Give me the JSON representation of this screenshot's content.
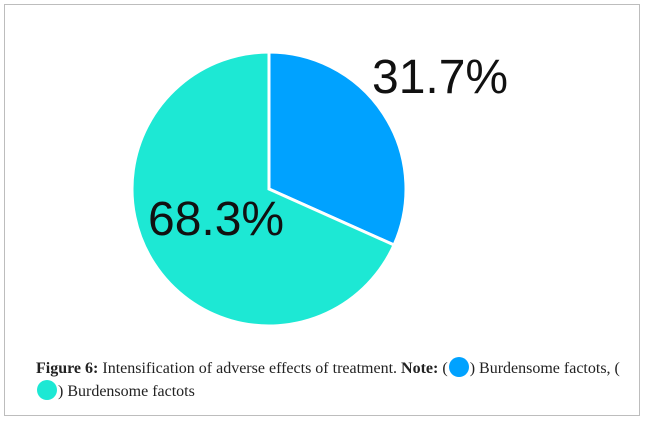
{
  "chart_data": {
    "type": "pie",
    "slices": [
      {
        "label": "31.7%",
        "value": 31.7,
        "color": "#00A2FF",
        "legend_name": "Burdensome factots"
      },
      {
        "label": "68.3%",
        "value": 68.3,
        "color": "#1DE8D4",
        "legend_name": "Burdensome factots"
      }
    ]
  },
  "caption": {
    "figure_label": "Figure 6:",
    "text": "Intensification of adverse effects of treatment.",
    "note_label": "Note:",
    "legend": [
      {
        "color": "#00A2FF",
        "text": "Burdensome factots"
      },
      {
        "color": "#1DE8D4",
        "text": "Burdensome factots"
      }
    ]
  }
}
